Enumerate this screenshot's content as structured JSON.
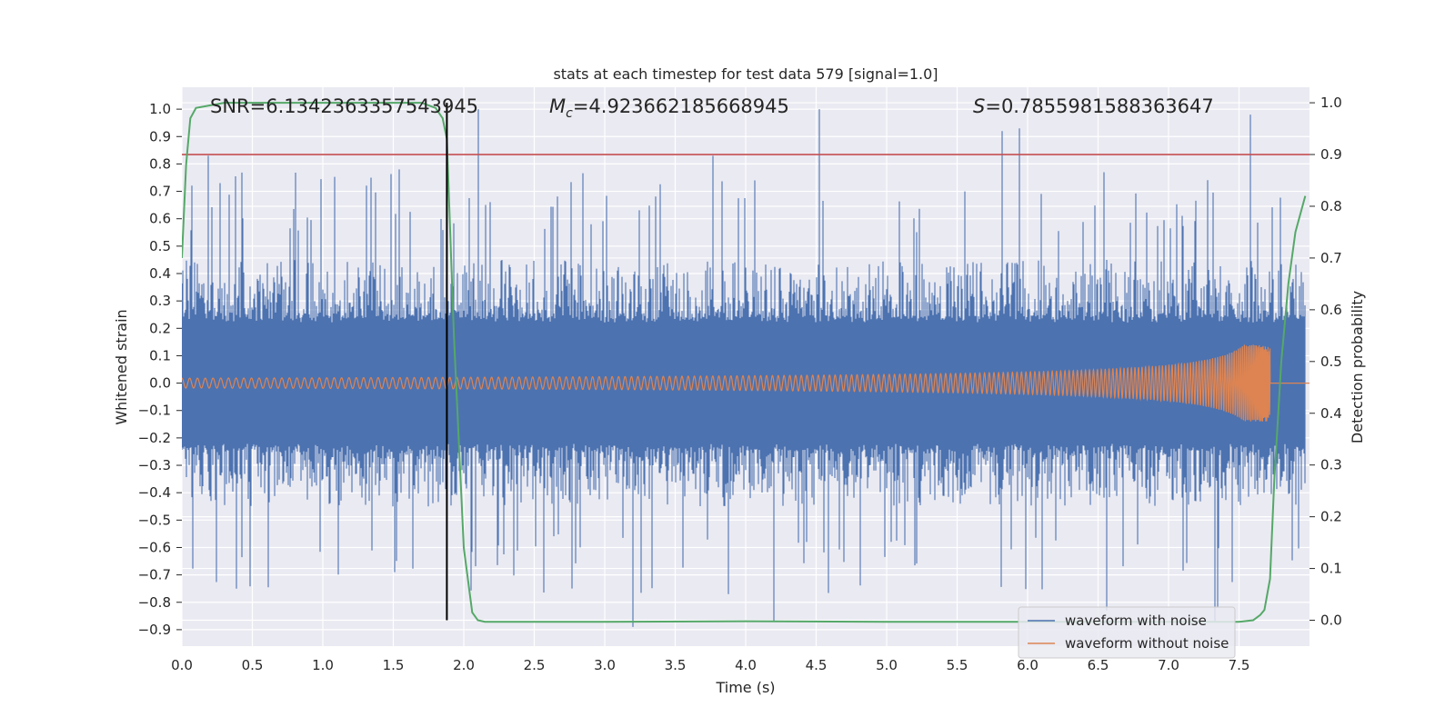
{
  "chart_data": {
    "type": "line",
    "title": "stats at each timestep for test data 579 [signal=1.0]",
    "xlabel": "Time (s)",
    "ylabel": "Whitened strain",
    "y2label": "Detection probability",
    "xlim": [
      0.0,
      8.0
    ],
    "ylim": [
      -0.96,
      1.08
    ],
    "y2lim": [
      -0.05,
      1.03
    ],
    "x_ticks": [
      0.0,
      0.5,
      1.0,
      1.5,
      2.0,
      2.5,
      3.0,
      3.5,
      4.0,
      4.5,
      5.0,
      5.5,
      6.0,
      6.5,
      7.0,
      7.5
    ],
    "x_tick_labels": [
      "0.0",
      "0.5",
      "1.0",
      "1.5",
      "2.0",
      "2.5",
      "3.0",
      "3.5",
      "4.0",
      "4.5",
      "5.0",
      "5.5",
      "6.0",
      "6.5",
      "7.0",
      "7.5"
    ],
    "y_ticks": [
      -0.9,
      -0.8,
      -0.7,
      -0.6,
      -0.5,
      -0.4,
      -0.3,
      -0.2,
      -0.1,
      0.0,
      0.1,
      0.2,
      0.3,
      0.4,
      0.5,
      0.6,
      0.7,
      0.8,
      0.9,
      1.0
    ],
    "y_tick_labels": [
      "−0.9",
      "−0.8",
      "−0.7",
      "−0.6",
      "−0.5",
      "−0.4",
      "−0.3",
      "−0.2",
      "−0.1",
      "0.0",
      "0.1",
      "0.2",
      "0.3",
      "0.4",
      "0.5",
      "0.6",
      "0.7",
      "0.8",
      "0.9",
      "1.0"
    ],
    "y2_ticks": [
      0.0,
      0.1,
      0.2,
      0.3,
      0.4,
      0.5,
      0.6,
      0.7,
      0.8,
      0.9,
      1.0
    ],
    "y2_tick_labels": [
      "0.0",
      "0.1",
      "0.2",
      "0.3",
      "0.4",
      "0.5",
      "0.6",
      "0.7",
      "0.8",
      "0.9",
      "1.0"
    ],
    "grid": true,
    "legend_position": "lower-right",
    "annotations": {
      "snr": "SNR=6.1342363357543945",
      "mc_symbol": "M",
      "mc_sub": "c",
      "mc_value": "=4.923662185668945",
      "s_symbol": "S",
      "s_value": "=0.7855981588363647"
    },
    "series": [
      {
        "name": "waveform with noise",
        "color": "#4c72b0",
        "kind": "noise",
        "x_range": [
          0.0,
          7.97
        ],
        "core_amplitude": 0.24,
        "typical_peak": 0.45,
        "max": 1.0,
        "min": -0.89,
        "notable_spikes": [
          {
            "x": 0.19,
            "y": 0.83
          },
          {
            "x": 0.27,
            "y": 0.73
          },
          {
            "x": 0.39,
            "y": -0.75
          },
          {
            "x": 1.34,
            "y": 0.75
          },
          {
            "x": 1.54,
            "y": 0.78
          },
          {
            "x": 2.1,
            "y": 1.0
          },
          {
            "x": 3.2,
            "y": -0.89
          },
          {
            "x": 3.77,
            "y": 0.83
          },
          {
            "x": 3.88,
            "y": -0.77
          },
          {
            "x": 4.2,
            "y": -0.87
          },
          {
            "x": 4.52,
            "y": 1.0
          },
          {
            "x": 5.82,
            "y": 0.92
          },
          {
            "x": 5.94,
            "y": 0.93
          },
          {
            "x": 6.54,
            "y": 0.77
          },
          {
            "x": 6.56,
            "y": -0.83
          },
          {
            "x": 7.33,
            "y": -0.87
          },
          {
            "x": 7.35,
            "y": -0.82
          },
          {
            "x": 7.58,
            "y": 0.98
          }
        ]
      },
      {
        "name": "waveform without noise",
        "color": "#dd8452",
        "kind": "chirp",
        "x_range": [
          0.0,
          7.73
        ],
        "start_amplitude": 0.018,
        "peak_amplitude": 0.14,
        "merger_time": 7.72
      },
      {
        "name": "detection probability",
        "axis": "right",
        "color": "#55a868",
        "x": [
          0.0,
          0.03,
          0.06,
          0.1,
          0.3,
          0.6,
          1.0,
          1.4,
          1.7,
          1.8,
          1.85,
          1.88,
          1.93,
          2.0,
          2.06,
          2.1,
          2.15,
          2.3,
          3.0,
          4.0,
          5.0,
          6.0,
          7.0,
          7.5,
          7.6,
          7.65,
          7.68,
          7.72,
          7.75,
          7.8,
          7.85,
          7.9,
          7.95,
          7.97
        ],
        "y": [
          0.7,
          0.88,
          0.97,
          0.99,
          1.0,
          1.0,
          1.0,
          1.0,
          1.0,
          0.99,
          0.97,
          0.93,
          0.55,
          0.14,
          0.015,
          0.0,
          -0.003,
          -0.003,
          -0.003,
          -0.002,
          -0.003,
          -0.003,
          -0.003,
          -0.003,
          0.0,
          0.01,
          0.02,
          0.08,
          0.27,
          0.5,
          0.65,
          0.75,
          0.8,
          0.82
        ]
      }
    ],
    "hlines": [
      {
        "y2": 0.9,
        "color": "#c44e52"
      }
    ],
    "vlines": [
      {
        "x": 1.88,
        "color": "#000000"
      }
    ]
  }
}
